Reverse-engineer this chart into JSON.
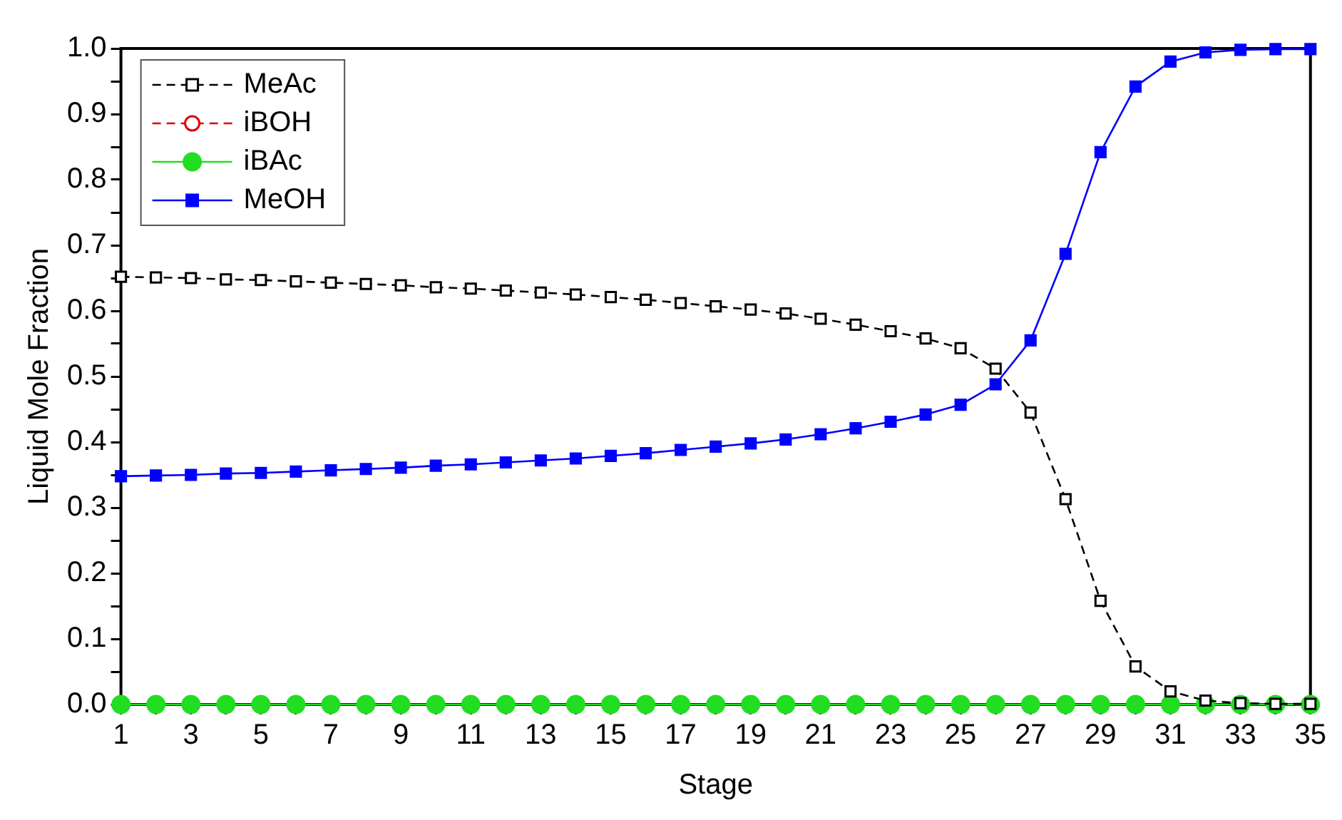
{
  "chart_data": {
    "type": "line",
    "xlabel": "Stage",
    "ylabel": "Liquid Mole Fraction",
    "x": [
      1,
      2,
      3,
      4,
      5,
      6,
      7,
      8,
      9,
      10,
      11,
      12,
      13,
      14,
      15,
      16,
      17,
      18,
      19,
      20,
      21,
      22,
      23,
      24,
      25,
      26,
      27,
      28,
      29,
      30,
      31,
      32,
      33,
      34,
      35
    ],
    "series": [
      {
        "name": "MeAc",
        "color": "#000000",
        "marker": "square",
        "line_style": "dashed",
        "values": [
          0.652,
          0.651,
          0.65,
          0.648,
          0.647,
          0.645,
          0.643,
          0.641,
          0.639,
          0.636,
          0.634,
          0.631,
          0.628,
          0.625,
          0.621,
          0.617,
          0.612,
          0.607,
          0.602,
          0.596,
          0.588,
          0.579,
          0.569,
          0.558,
          0.543,
          0.512,
          0.445,
          0.313,
          0.158,
          0.058,
          0.02,
          0.006,
          0.002,
          0.001,
          0.001
        ]
      },
      {
        "name": "iBOH",
        "color": "#e00000",
        "marker": "circle",
        "line_style": "dashed",
        "values": [
          null,
          null,
          null,
          null,
          null,
          null,
          null,
          null,
          null,
          null,
          null,
          null,
          null,
          null,
          null,
          null,
          null,
          null,
          null,
          null,
          null,
          null,
          null,
          null,
          null,
          null,
          null,
          null,
          null,
          null,
          null,
          null,
          null,
          null,
          null
        ]
      },
      {
        "name": "iBAc",
        "color": "#22dd22",
        "marker": "circle",
        "line_style": "solid",
        "values": [
          0,
          0,
          0,
          0,
          0,
          0,
          0,
          0,
          0,
          0,
          0,
          0,
          0,
          0,
          0,
          0,
          0,
          0,
          0,
          0,
          0,
          0,
          0,
          0,
          0,
          0,
          0,
          0,
          0,
          0,
          0,
          0,
          0,
          0,
          0
        ]
      },
      {
        "name": "MeOH",
        "color": "#0000ff",
        "marker": "square",
        "line_style": "solid",
        "values": [
          0.348,
          0.349,
          0.35,
          0.352,
          0.353,
          0.355,
          0.357,
          0.359,
          0.361,
          0.364,
          0.366,
          0.369,
          0.372,
          0.375,
          0.379,
          0.383,
          0.388,
          0.393,
          0.398,
          0.404,
          0.412,
          0.421,
          0.431,
          0.442,
          0.457,
          0.488,
          0.555,
          0.687,
          0.842,
          0.942,
          0.98,
          0.994,
          0.998,
          0.999,
          0.999
        ]
      }
    ],
    "xlim": [
      1,
      35
    ],
    "xticks": [
      1,
      {
        "value": 2,
        "label": null
      },
      3,
      {
        "value": 4,
        "label": null
      },
      5,
      {
        "value": 6,
        "label": null
      },
      7,
      {
        "value": 8,
        "label": null
      },
      9,
      {
        "value": 10,
        "label": null
      },
      11,
      {
        "value": 12,
        "label": null
      },
      13,
      {
        "value": 14,
        "label": null
      },
      15,
      {
        "value": 16,
        "label": null
      },
      17,
      {
        "value": 18,
        "label": null
      },
      19,
      {
        "value": 20,
        "label": null
      },
      21,
      {
        "value": 22,
        "label": null
      },
      23,
      {
        "value": 24,
        "label": null
      },
      25,
      {
        "value": 26,
        "label": null
      },
      27,
      {
        "value": 28,
        "label": null
      },
      29,
      {
        "value": 30,
        "label": null
      },
      31,
      {
        "value": 32,
        "label": null
      },
      33,
      {
        "value": 34,
        "label": null
      },
      35
    ],
    "ylim": [
      0,
      1
    ],
    "yticks": [
      {
        "value": 0,
        "label": "0.0"
      },
      {
        "value": 0.05,
        "label": null
      },
      {
        "value": 0.1,
        "label": "0.1"
      },
      {
        "value": 0.15,
        "label": null
      },
      {
        "value": 0.2,
        "label": "0.2"
      },
      {
        "value": 0.25,
        "label": null
      },
      {
        "value": 0.3,
        "label": "0.3"
      },
      {
        "value": 0.35,
        "label": null
      },
      {
        "value": 0.4,
        "label": "0.4"
      },
      {
        "value": 0.45,
        "label": null
      },
      {
        "value": 0.5,
        "label": "0.5"
      },
      {
        "value": 0.55,
        "label": null
      },
      {
        "value": 0.6,
        "label": "0.6"
      },
      {
        "value": 0.65,
        "label": null
      },
      {
        "value": 0.7,
        "label": "0.7"
      },
      {
        "value": 0.75,
        "label": null
      },
      {
        "value": 0.8,
        "label": "0.8"
      },
      {
        "value": 0.85,
        "label": null
      },
      {
        "value": 0.9,
        "label": "0.9"
      },
      {
        "value": 0.95,
        "label": null
      },
      {
        "value": 1,
        "label": "1.0"
      }
    ],
    "grid": false,
    "legend": "top left"
  }
}
